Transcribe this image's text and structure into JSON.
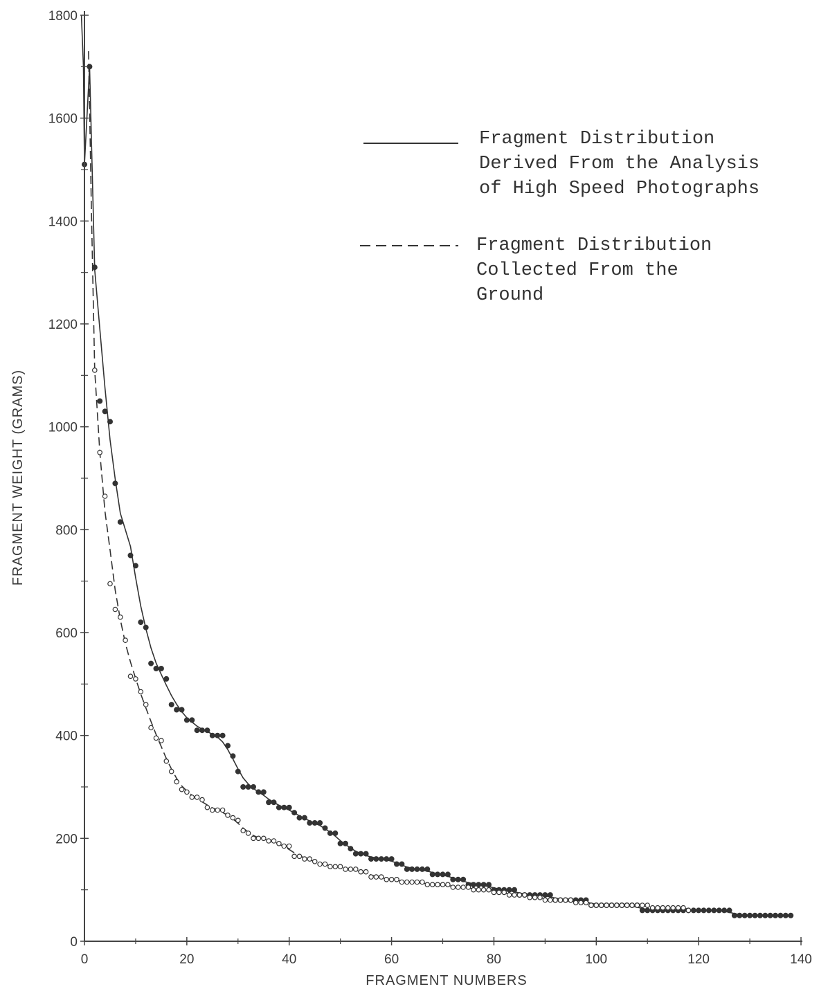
{
  "chart_data": {
    "type": "scatter",
    "title": "",
    "xlabel": "FRAGMENT NUMBERS",
    "ylabel": "FRAGMENT WEIGHT (GRAMS)",
    "xlim": [
      0,
      140
    ],
    "ylim": [
      0,
      1800
    ],
    "xticks": [
      "0",
      "20",
      "40",
      "60",
      "80",
      "100",
      "120",
      "140"
    ],
    "yticks": [
      "0",
      "200",
      "400",
      "600",
      "800",
      "1000",
      "1200",
      "1400",
      "1600",
      "1800"
    ],
    "grid": false,
    "legend_position": "top-right",
    "legend": [
      {
        "style": "solid",
        "lines": [
          "Fragment Distribution",
          "Derived From the Analysis",
          "of High Speed Photographs"
        ]
      },
      {
        "style": "dashed",
        "lines": [
          "Fragment Distribution",
          "Collected From the",
          "Ground"
        ]
      }
    ],
    "series": [
      {
        "style": "solid-line-filled-points",
        "color": "#333333",
        "points": [
          [
            0,
            1510
          ],
          [
            1,
            1700
          ],
          [
            2,
            1310
          ],
          [
            3,
            1050
          ],
          [
            4,
            1030
          ],
          [
            5,
            1010
          ],
          [
            6,
            890
          ],
          [
            7,
            815
          ],
          [
            9,
            750
          ],
          [
            10,
            730
          ],
          [
            11,
            620
          ],
          [
            12,
            610
          ],
          [
            13,
            540
          ],
          [
            14,
            530
          ],
          [
            15,
            530
          ],
          [
            16,
            510
          ],
          [
            17,
            460
          ],
          [
            18,
            450
          ],
          [
            19,
            450
          ],
          [
            20,
            430
          ],
          [
            21,
            430
          ],
          [
            22,
            410
          ],
          [
            23,
            410
          ],
          [
            24,
            410
          ],
          [
            25,
            400
          ],
          [
            26,
            400
          ],
          [
            27,
            400
          ],
          [
            28,
            380
          ],
          [
            29,
            360
          ],
          [
            30,
            330
          ],
          [
            31,
            300
          ],
          [
            32,
            300
          ],
          [
            33,
            300
          ],
          [
            34,
            290
          ],
          [
            35,
            290
          ],
          [
            36,
            270
          ],
          [
            37,
            270
          ],
          [
            38,
            260
          ],
          [
            39,
            260
          ],
          [
            40,
            260
          ],
          [
            41,
            250
          ],
          [
            42,
            240
          ],
          [
            43,
            240
          ],
          [
            44,
            230
          ],
          [
            45,
            230
          ],
          [
            46,
            230
          ],
          [
            47,
            220
          ],
          [
            48,
            210
          ],
          [
            49,
            210
          ],
          [
            50,
            190
          ],
          [
            51,
            190
          ],
          [
            52,
            180
          ],
          [
            53,
            170
          ],
          [
            54,
            170
          ],
          [
            55,
            170
          ],
          [
            56,
            160
          ],
          [
            57,
            160
          ],
          [
            58,
            160
          ],
          [
            59,
            160
          ],
          [
            60,
            160
          ],
          [
            61,
            150
          ],
          [
            62,
            150
          ],
          [
            63,
            140
          ],
          [
            64,
            140
          ],
          [
            65,
            140
          ],
          [
            66,
            140
          ],
          [
            67,
            140
          ],
          [
            68,
            130
          ],
          [
            69,
            130
          ],
          [
            70,
            130
          ],
          [
            71,
            130
          ],
          [
            72,
            120
          ],
          [
            73,
            120
          ],
          [
            74,
            120
          ],
          [
            75,
            110
          ],
          [
            76,
            110
          ],
          [
            77,
            110
          ],
          [
            78,
            110
          ],
          [
            79,
            110
          ],
          [
            80,
            100
          ],
          [
            81,
            100
          ],
          [
            82,
            100
          ],
          [
            83,
            100
          ],
          [
            84,
            100
          ],
          [
            85,
            90
          ],
          [
            86,
            90
          ],
          [
            87,
            90
          ],
          [
            88,
            90
          ],
          [
            89,
            90
          ],
          [
            90,
            90
          ],
          [
            91,
            90
          ],
          [
            92,
            80
          ],
          [
            93,
            80
          ],
          [
            94,
            80
          ],
          [
            95,
            80
          ],
          [
            96,
            80
          ],
          [
            97,
            80
          ],
          [
            98,
            80
          ],
          [
            99,
            70
          ],
          [
            100,
            70
          ],
          [
            101,
            70
          ],
          [
            102,
            70
          ],
          [
            103,
            70
          ],
          [
            104,
            70
          ],
          [
            105,
            70
          ],
          [
            106,
            70
          ],
          [
            107,
            70
          ],
          [
            108,
            70
          ],
          [
            109,
            60
          ],
          [
            110,
            60
          ],
          [
            111,
            60
          ],
          [
            112,
            60
          ],
          [
            113,
            60
          ],
          [
            114,
            60
          ],
          [
            115,
            60
          ],
          [
            116,
            60
          ],
          [
            117,
            60
          ],
          [
            118,
            60
          ],
          [
            119,
            60
          ],
          [
            120,
            60
          ],
          [
            121,
            60
          ],
          [
            122,
            60
          ],
          [
            123,
            60
          ],
          [
            124,
            60
          ],
          [
            125,
            60
          ],
          [
            126,
            60
          ],
          [
            127,
            50
          ],
          [
            128,
            50
          ],
          [
            129,
            50
          ],
          [
            130,
            50
          ],
          [
            131,
            50
          ],
          [
            132,
            50
          ],
          [
            133,
            50
          ],
          [
            134,
            50
          ],
          [
            135,
            50
          ],
          [
            136,
            50
          ],
          [
            137,
            50
          ],
          [
            138,
            50
          ]
        ]
      },
      {
        "style": "dashed-line-open-points",
        "color": "#333333",
        "points": [
          [
            2,
            1110
          ],
          [
            3,
            950
          ],
          [
            4,
            865
          ],
          [
            5,
            695
          ],
          [
            6,
            645
          ],
          [
            7,
            630
          ],
          [
            8,
            585
          ],
          [
            9,
            515
          ],
          [
            10,
            510
          ],
          [
            11,
            485
          ],
          [
            12,
            460
          ],
          [
            13,
            415
          ],
          [
            14,
            395
          ],
          [
            15,
            390
          ],
          [
            16,
            350
          ],
          [
            17,
            330
          ],
          [
            18,
            310
          ],
          [
            19,
            295
          ],
          [
            20,
            290
          ],
          [
            21,
            280
          ],
          [
            22,
            280
          ],
          [
            23,
            275
          ],
          [
            24,
            260
          ],
          [
            25,
            255
          ],
          [
            26,
            255
          ],
          [
            27,
            255
          ],
          [
            28,
            245
          ],
          [
            29,
            240
          ],
          [
            30,
            235
          ],
          [
            31,
            215
          ],
          [
            32,
            210
          ],
          [
            33,
            200
          ],
          [
            34,
            200
          ],
          [
            35,
            200
          ],
          [
            36,
            195
          ],
          [
            37,
            195
          ],
          [
            38,
            190
          ],
          [
            39,
            185
          ],
          [
            40,
            185
          ],
          [
            41,
            165
          ],
          [
            42,
            165
          ],
          [
            43,
            160
          ],
          [
            44,
            160
          ],
          [
            45,
            155
          ],
          [
            46,
            150
          ],
          [
            47,
            150
          ],
          [
            48,
            145
          ],
          [
            49,
            145
          ],
          [
            50,
            145
          ],
          [
            51,
            140
          ],
          [
            52,
            140
          ],
          [
            53,
            140
          ],
          [
            54,
            135
          ],
          [
            55,
            135
          ],
          [
            56,
            125
          ],
          [
            57,
            125
          ],
          [
            58,
            125
          ],
          [
            59,
            120
          ],
          [
            60,
            120
          ],
          [
            61,
            120
          ],
          [
            62,
            115
          ],
          [
            63,
            115
          ],
          [
            64,
            115
          ],
          [
            65,
            115
          ],
          [
            66,
            115
          ],
          [
            67,
            110
          ],
          [
            68,
            110
          ],
          [
            69,
            110
          ],
          [
            70,
            110
          ],
          [
            71,
            110
          ],
          [
            72,
            105
          ],
          [
            73,
            105
          ],
          [
            74,
            105
          ],
          [
            75,
            105
          ],
          [
            76,
            100
          ],
          [
            77,
            100
          ],
          [
            78,
            100
          ],
          [
            79,
            100
          ],
          [
            80,
            95
          ],
          [
            81,
            95
          ],
          [
            82,
            95
          ],
          [
            83,
            90
          ],
          [
            84,
            90
          ],
          [
            85,
            90
          ],
          [
            86,
            90
          ],
          [
            87,
            85
          ],
          [
            88,
            85
          ],
          [
            89,
            85
          ],
          [
            90,
            80
          ],
          [
            91,
            80
          ],
          [
            92,
            80
          ],
          [
            93,
            80
          ],
          [
            94,
            80
          ],
          [
            95,
            80
          ],
          [
            96,
            75
          ],
          [
            97,
            75
          ],
          [
            98,
            75
          ],
          [
            99,
            70
          ],
          [
            100,
            70
          ],
          [
            101,
            70
          ],
          [
            102,
            70
          ],
          [
            103,
            70
          ],
          [
            104,
            70
          ],
          [
            105,
            70
          ],
          [
            106,
            70
          ],
          [
            107,
            70
          ],
          [
            108,
            70
          ],
          [
            109,
            70
          ],
          [
            110,
            70
          ],
          [
            111,
            65
          ],
          [
            112,
            65
          ],
          [
            113,
            65
          ],
          [
            114,
            65
          ],
          [
            115,
            65
          ],
          [
            116,
            65
          ],
          [
            117,
            65
          ],
          [
            118,
            60
          ]
        ]
      }
    ]
  }
}
